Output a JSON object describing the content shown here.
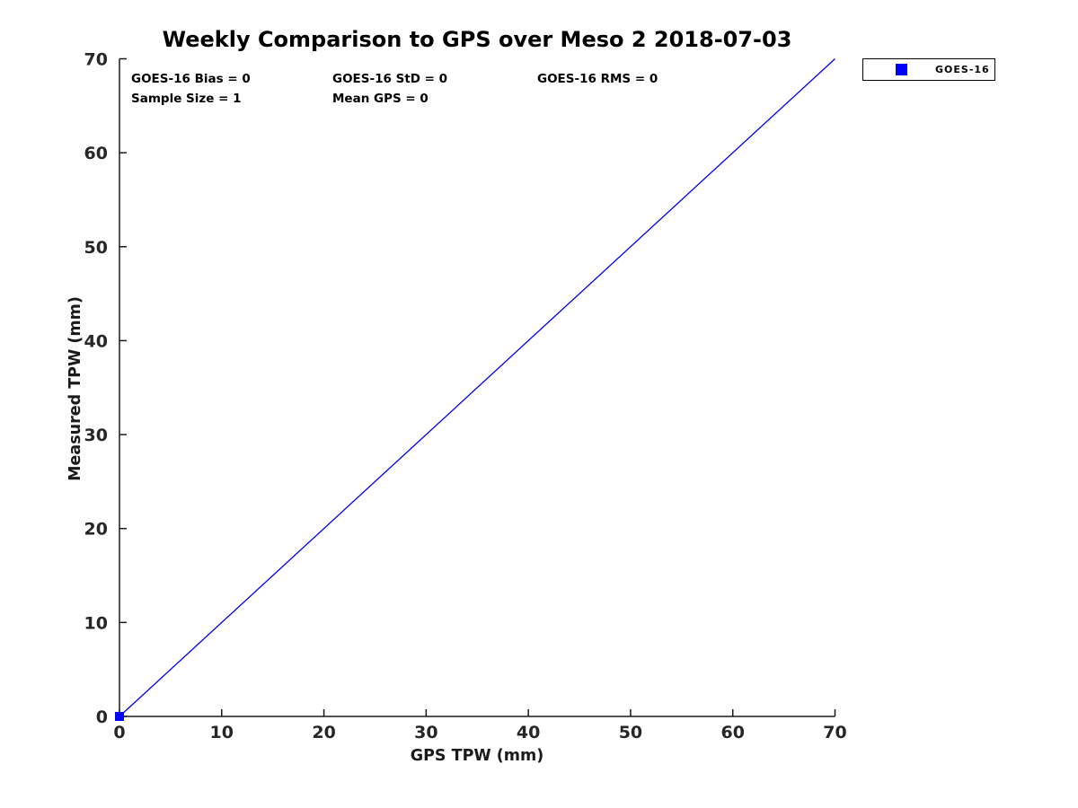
{
  "chart_data": {
    "type": "scatter",
    "title": "Weekly Comparison to GPS over Meso 2 2018-07-03",
    "xlabel": "GPS TPW (mm)",
    "ylabel": "Measured TPW (mm)",
    "xlim": [
      0,
      70
    ],
    "ylim": [
      0,
      70
    ],
    "xticks": [
      0,
      10,
      20,
      30,
      40,
      50,
      60,
      70
    ],
    "yticks": [
      0,
      10,
      20,
      30,
      40,
      50,
      60,
      70
    ],
    "grid": false,
    "box": false,
    "axis_color": "#1a1a1a",
    "tick_label_color": "#262626",
    "series": [
      {
        "name": "identity-line",
        "type": "line",
        "color": "#0000ee",
        "width": 1.3,
        "points": [
          [
            0,
            0
          ],
          [
            70,
            70
          ]
        ]
      },
      {
        "name": "GOES-16",
        "type": "scatter",
        "marker": "square",
        "marker_size": 10,
        "color": "#0000ff",
        "points": [
          [
            0,
            0
          ]
        ]
      }
    ],
    "annotations": [
      {
        "text": "GOES-16 Bias = 0"
      },
      {
        "text": "GOES-16 StD = 0"
      },
      {
        "text": "GOES-16 RMS = 0"
      },
      {
        "text": "Sample Size = 1"
      },
      {
        "text": "Mean GPS = 0"
      }
    ],
    "legend": {
      "position": "outside-top-right",
      "entries": [
        {
          "label": "GOES-16",
          "marker": "square",
          "color": "#0000ff"
        }
      ]
    }
  }
}
